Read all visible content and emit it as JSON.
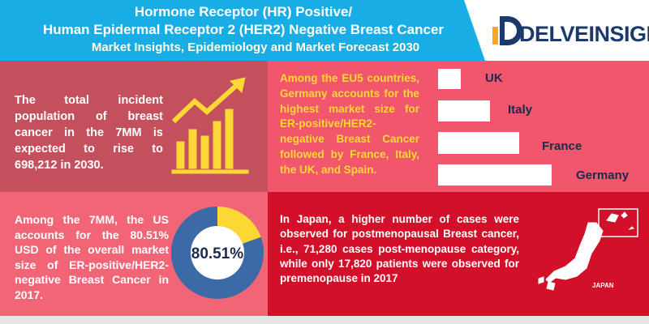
{
  "header": {
    "title_lines": [
      "Hormone Receptor (HR) Positive/",
      "Human Epidermal Receptor 2 (HER2) Negative Breast Cancer",
      "Market Insights, Epidemiology and Market Forecast 2030"
    ],
    "logo": "DELVEINSIGHT"
  },
  "panels": {
    "incidence": {
      "text": "The total incident population of breast cancer in the 7MM is expected to rise to 698,212 in 2030."
    },
    "eu5": {
      "text": "Among the EU5 countries, Germany accounts for the highest market size for ER-positive/HER2-negative Breast Cancer followed by France, Italy, the UK, and Spain.",
      "countries": [
        "UK",
        "Italy",
        "France",
        "Germany"
      ]
    },
    "us_share": {
      "text": "Among the 7MM, the US accounts for the 80.51% USD of the overall market size of ER-positive/HER2-negative Breast Cancer in 2017.",
      "donut": {
        "type": "pie",
        "value": 80.51,
        "value_label": "80.51%",
        "color": "#fdd835",
        "rest_color": "#3b6aa6"
      }
    },
    "japan": {
      "text": "In Japan, a higher number of cases were observed for postmenopausal Breast cancer, i.e., 71,280 cases post-menopause category, while only 17,820 patients were observed for premenopause in 2017",
      "map_label": "JAPAN"
    }
  }
}
